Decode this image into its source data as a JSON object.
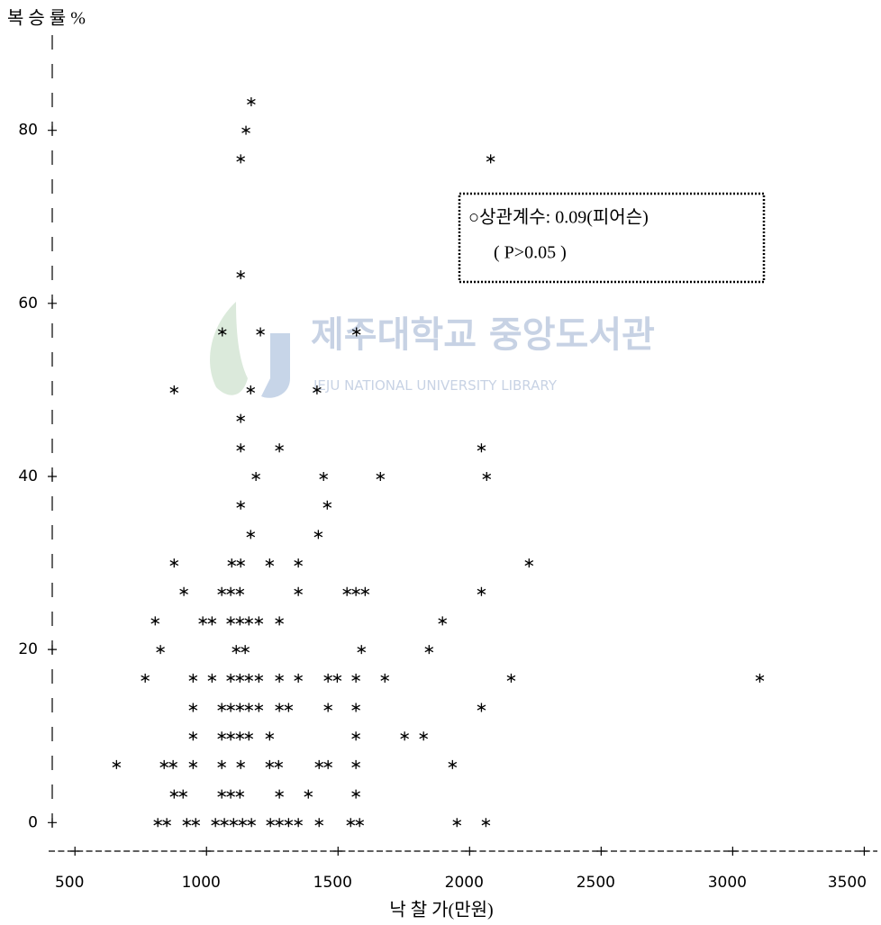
{
  "chart_data": {
    "type": "scatter",
    "title": "복 승 률 %",
    "x_label": "낙 찰 가(만원)",
    "annotation": [
      "○상관계수: 0.09(피어슨)",
      "( P>0.05 )"
    ],
    "watermark": [
      "제주대학교 중앙도서관",
      "JEJU NATIONAL UNIVERSITY LIBRARY"
    ],
    "color": "#000000",
    "xlim": [
      400,
      3550
    ],
    "ylim": [
      -3.3,
      91
    ],
    "xticks": [
      500,
      1000,
      1500,
      2000,
      2500,
      3000,
      3500
    ],
    "yticks": [
      0,
      20,
      40,
      60,
      80
    ],
    "x": [
      1170,
      1150,
      1130,
      2080,
      1130,
      1060,
      1205,
      1570,
      877,
      1168,
      1420,
      1130,
      1130,
      1277,
      2045,
      1188,
      1445,
      1661,
      2065,
      1130,
      1459,
      1168,
      1425,
      877,
      1096,
      1130,
      1240,
      1349,
      2226,
      914,
      1058,
      1092,
      1127,
      1349,
      1534,
      1568,
      1603,
      2045,
      805,
      986,
      1021,
      1092,
      1127,
      1161,
      1199,
      1277,
      1897,
      825,
      1113,
      1147,
      1589,
      1846,
      767,
      949,
      1021,
      1092,
      1127,
      1161,
      1199,
      1277,
      1349,
      1462,
      1497,
      1568,
      1678,
      2158,
      3103,
      949,
      1058,
      1092,
      1127,
      1161,
      1199,
      1277,
      1312,
      1462,
      1568,
      2045,
      949,
      1058,
      1092,
      1127,
      1161,
      1240,
      1568,
      1753,
      1825,
      658,
      839,
      873,
      949,
      1058,
      1130,
      1240,
      1274,
      1428,
      1462,
      1568,
      1935,
      877,
      911,
      1058,
      1092,
      1127,
      1277,
      1387,
      1568,
      815,
      849,
      925,
      959,
      1034,
      1068,
      1103,
      1137,
      1171,
      1243,
      1277,
      1312,
      1349,
      1428,
      1548,
      1582,
      1952,
      2062
    ],
    "y": [
      83.3,
      80,
      76.7,
      76.7,
      63.3,
      56.7,
      56.7,
      56.7,
      50,
      50,
      50,
      46.7,
      43.3,
      43.3,
      43.3,
      40,
      40,
      40,
      40,
      36.7,
      36.7,
      33.3,
      33.3,
      30,
      30,
      30,
      30,
      30,
      30,
      26.7,
      26.7,
      26.7,
      26.7,
      26.7,
      26.7,
      26.7,
      26.7,
      26.7,
      23.3,
      23.3,
      23.3,
      23.3,
      23.3,
      23.3,
      23.3,
      23.3,
      23.3,
      20,
      20,
      20,
      20,
      20,
      16.7,
      16.7,
      16.7,
      16.7,
      16.7,
      16.7,
      16.7,
      16.7,
      16.7,
      16.7,
      16.7,
      16.7,
      16.7,
      16.7,
      16.7,
      13.3,
      13.3,
      13.3,
      13.3,
      13.3,
      13.3,
      13.3,
      13.3,
      13.3,
      13.3,
      13.3,
      10,
      10,
      10,
      10,
      10,
      10,
      10,
      10,
      10,
      6.7,
      6.7,
      6.7,
      6.7,
      6.7,
      6.7,
      6.7,
      6.7,
      6.7,
      6.7,
      6.7,
      6.7,
      3.3,
      3.3,
      3.3,
      3.3,
      3.3,
      3.3,
      3.3,
      3.3,
      0,
      0,
      0,
      0,
      0,
      0,
      0,
      0,
      0,
      0,
      0,
      0,
      0,
      0,
      0,
      0,
      0,
      0
    ]
  }
}
